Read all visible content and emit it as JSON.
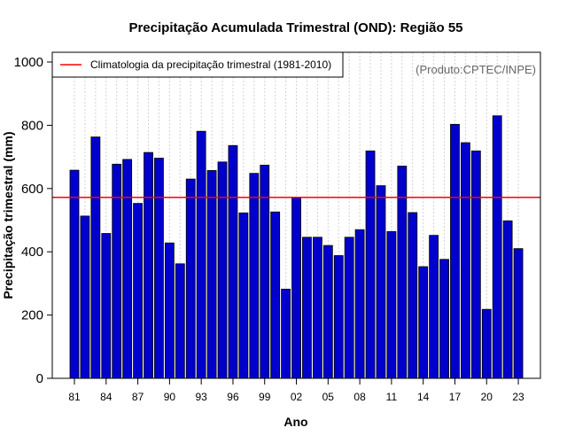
{
  "chart_data": {
    "type": "bar",
    "title": "Precipitação Acumulada Trimestral (OND): Região 55",
    "xlabel": "Ano",
    "ylabel": "Precipitação trimestral (mm)",
    "ylim": [
      0,
      1030
    ],
    "yticks": [
      0,
      200,
      400,
      600,
      800,
      1000
    ],
    "xtick_labels": [
      "81",
      "84",
      "87",
      "90",
      "93",
      "96",
      "99",
      "02",
      "05",
      "08",
      "11",
      "14",
      "17",
      "20",
      "23"
    ],
    "grid": true,
    "legend": {
      "position": "top-left",
      "entries": [
        "Climatologia da precipitação trimestral (1981-2010)"
      ]
    },
    "annotation": "(Produto:CPTEC/INPE)",
    "climatology": 572,
    "bar_color": "#0000cd",
    "line_color": "#ff0000",
    "categories": [
      "1981",
      "1982",
      "1983",
      "1984",
      "1985",
      "1986",
      "1987",
      "1988",
      "1989",
      "1990",
      "1991",
      "1992",
      "1993",
      "1994",
      "1995",
      "1996",
      "1997",
      "1998",
      "1999",
      "2000",
      "2001",
      "2002",
      "2003",
      "2004",
      "2005",
      "2006",
      "2007",
      "2008",
      "2009",
      "2010",
      "2011",
      "2012",
      "2013",
      "2014",
      "2015",
      "2016",
      "2017",
      "2018",
      "2019",
      "2020",
      "2021",
      "2022",
      "2023"
    ],
    "values": [
      658,
      513,
      763,
      458,
      677,
      692,
      553,
      714,
      696,
      428,
      362,
      630,
      781,
      657,
      684,
      736,
      523,
      648,
      674,
      526,
      282,
      571,
      446,
      446,
      420,
      388,
      446,
      470,
      719,
      609,
      464,
      671,
      524,
      353,
      452,
      376,
      803,
      745,
      719,
      218,
      830,
      498,
      410
    ]
  }
}
